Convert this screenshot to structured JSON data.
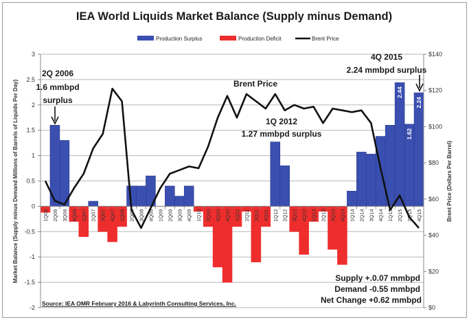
{
  "chart_data": {
    "type": "bar",
    "title": "IEA World Liquids Market Balance (Supply minus Demand)",
    "legend": [
      {
        "name": "Production  Surplus",
        "color": "#3a4fb0",
        "kind": "bar"
      },
      {
        "name": "Production  Deficit",
        "color": "#ee2d2d",
        "kind": "bar"
      },
      {
        "name": "Brent Price",
        "color": "#111111",
        "kind": "line"
      }
    ],
    "legend_position": "top",
    "ylabel": "Market Balance (Supply minus Demand Millions of Barrels of Liquids  Per Day)",
    "y2label": "Brent Price (Dollars Per Barrel)",
    "ylim": [
      -2,
      3
    ],
    "y2lim": [
      0,
      140
    ],
    "yticks": [
      "-2",
      "-1.5",
      "-1",
      "-0.5",
      "0",
      "0.5",
      "1",
      "1.5",
      "2",
      "2.5",
      "3"
    ],
    "y2ticks": [
      "$0",
      "$20",
      "$40",
      "$60",
      "$80",
      "$100",
      "$120",
      "$140"
    ],
    "grid": true,
    "categories": [
      "1Q06",
      "2Q06",
      "3Q06",
      "4Q06",
      "1Q07",
      "2Q07",
      "3Q07",
      "4Q07",
      "1Q08",
      "2Q08",
      "3Q08",
      "4Q08",
      "1Q09",
      "2Q09",
      "3Q09",
      "4Q09",
      "1Q10",
      "2Q10",
      "3Q10",
      "4Q10",
      "1Q11",
      "2Q11",
      "3Q11",
      "4Q11",
      "1Q12",
      "2Q12",
      "3Q12",
      "4Q12",
      "1Q13",
      "2Q13",
      "3Q13",
      "4Q13",
      "1Q14",
      "2Q14",
      "3Q14",
      "4Q14",
      "1Q15",
      "2Q15",
      "3Q15",
      "4Q15"
    ],
    "series": [
      {
        "name": "Market Balance",
        "type": "bar",
        "values": [
          -0.12,
          1.6,
          1.3,
          -0.3,
          -0.6,
          0.1,
          -0.5,
          -0.7,
          -0.4,
          0.4,
          0.4,
          0.6,
          0.0,
          0.4,
          0.2,
          0.4,
          -0.1,
          -0.4,
          -1.2,
          -1.5,
          -0.4,
          -0.1,
          -1.1,
          -0.4,
          1.27,
          0.8,
          -0.5,
          -0.95,
          -0.3,
          -0.1,
          -0.85,
          -1.15,
          0.3,
          1.07,
          1.03,
          1.38,
          1.6,
          2.44,
          1.62,
          2.24
        ]
      },
      {
        "name": "Brent Price",
        "type": "line",
        "axis": "right",
        "values": [
          70,
          59,
          57,
          66,
          74,
          88,
          96,
          121,
          114,
          54,
          44,
          55,
          66,
          74,
          76,
          78,
          77,
          89,
          105,
          117,
          105,
          118,
          114,
          110,
          118,
          109,
          112,
          110,
          111,
          102,
          110,
          109,
          108,
          109,
          102,
          77,
          54,
          62,
          50,
          44
        ]
      }
    ],
    "bar_value_labels": [
      {
        "category": "2Q15",
        "text": "2.44"
      },
      {
        "category": "3Q15",
        "text": "1.62"
      },
      {
        "category": "4Q15",
        "text": "2.24"
      }
    ],
    "annotations": {
      "a2006": [
        "2Q 2006",
        "1.6 mmbpd",
        "surplus"
      ],
      "a2012": [
        "1Q 2012",
        "1.27 mmbpd surplus"
      ],
      "a2015": [
        "4Q 2015",
        "2.24 mmbpd surplus"
      ],
      "brent_label": "Brent Price",
      "summary": [
        "Supply +.0.07 mmbpd",
        "Demand -0.55 mmbpd",
        "Net Change +0.62 mmbpd"
      ],
      "source": "Source:  IEA OMR February 2016 & Labyrinth Consulting  Services, Inc."
    }
  }
}
